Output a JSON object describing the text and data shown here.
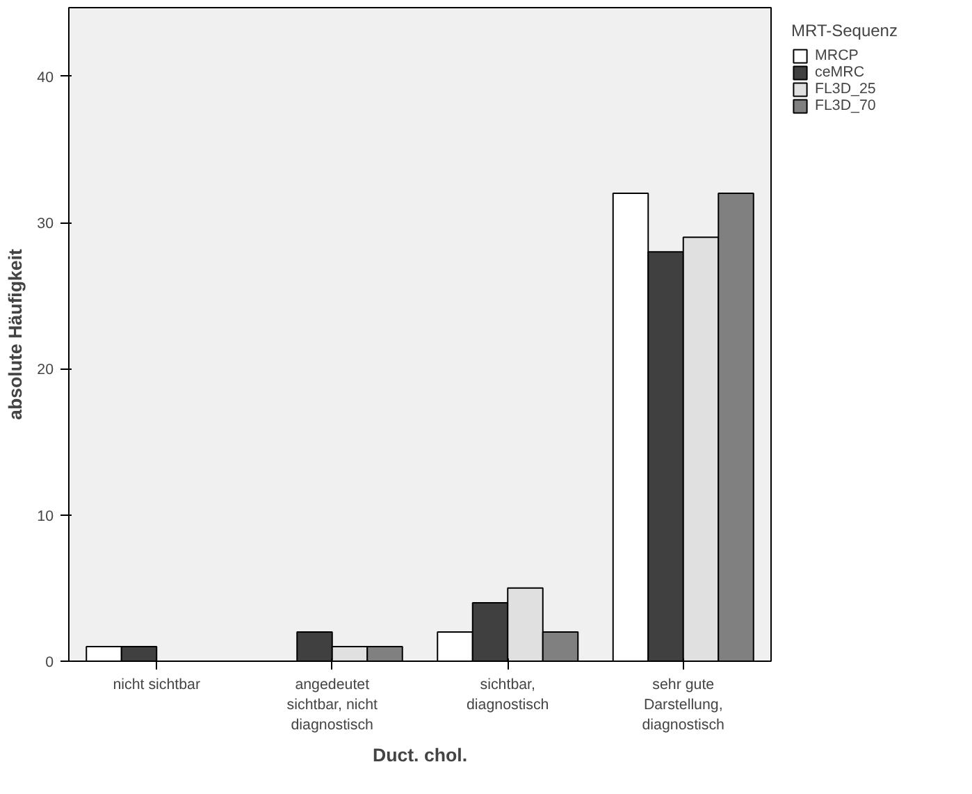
{
  "chart_data": {
    "type": "bar",
    "xlabel": "Duct. chol.",
    "ylabel": "absolute Häufigkeit",
    "legend_title": "MRT-Sequenz",
    "legend": "right",
    "grid": false,
    "categories": [
      "nicht sichtbar",
      "angedeutet sichtbar, nicht diagnostisch",
      "sichtbar, diagnostisch",
      "sehr gute Darstellung, diagnostisch"
    ],
    "ylim": [
      0,
      44.7
    ],
    "yticks": [
      0,
      10,
      20,
      30,
      40
    ],
    "series": [
      {
        "name": "MRCP",
        "color": "#ffffff",
        "values": [
          1,
          0,
          2,
          32
        ]
      },
      {
        "name": "ceMRC",
        "color": "#404040",
        "values": [
          1,
          2,
          4,
          28
        ]
      },
      {
        "name": "FL3D_25",
        "color": "#e0e0e0",
        "values": [
          0,
          1,
          5,
          29
        ]
      },
      {
        "name": "FL3D_70",
        "color": "#808080",
        "values": [
          0,
          1,
          2,
          32
        ]
      }
    ]
  }
}
